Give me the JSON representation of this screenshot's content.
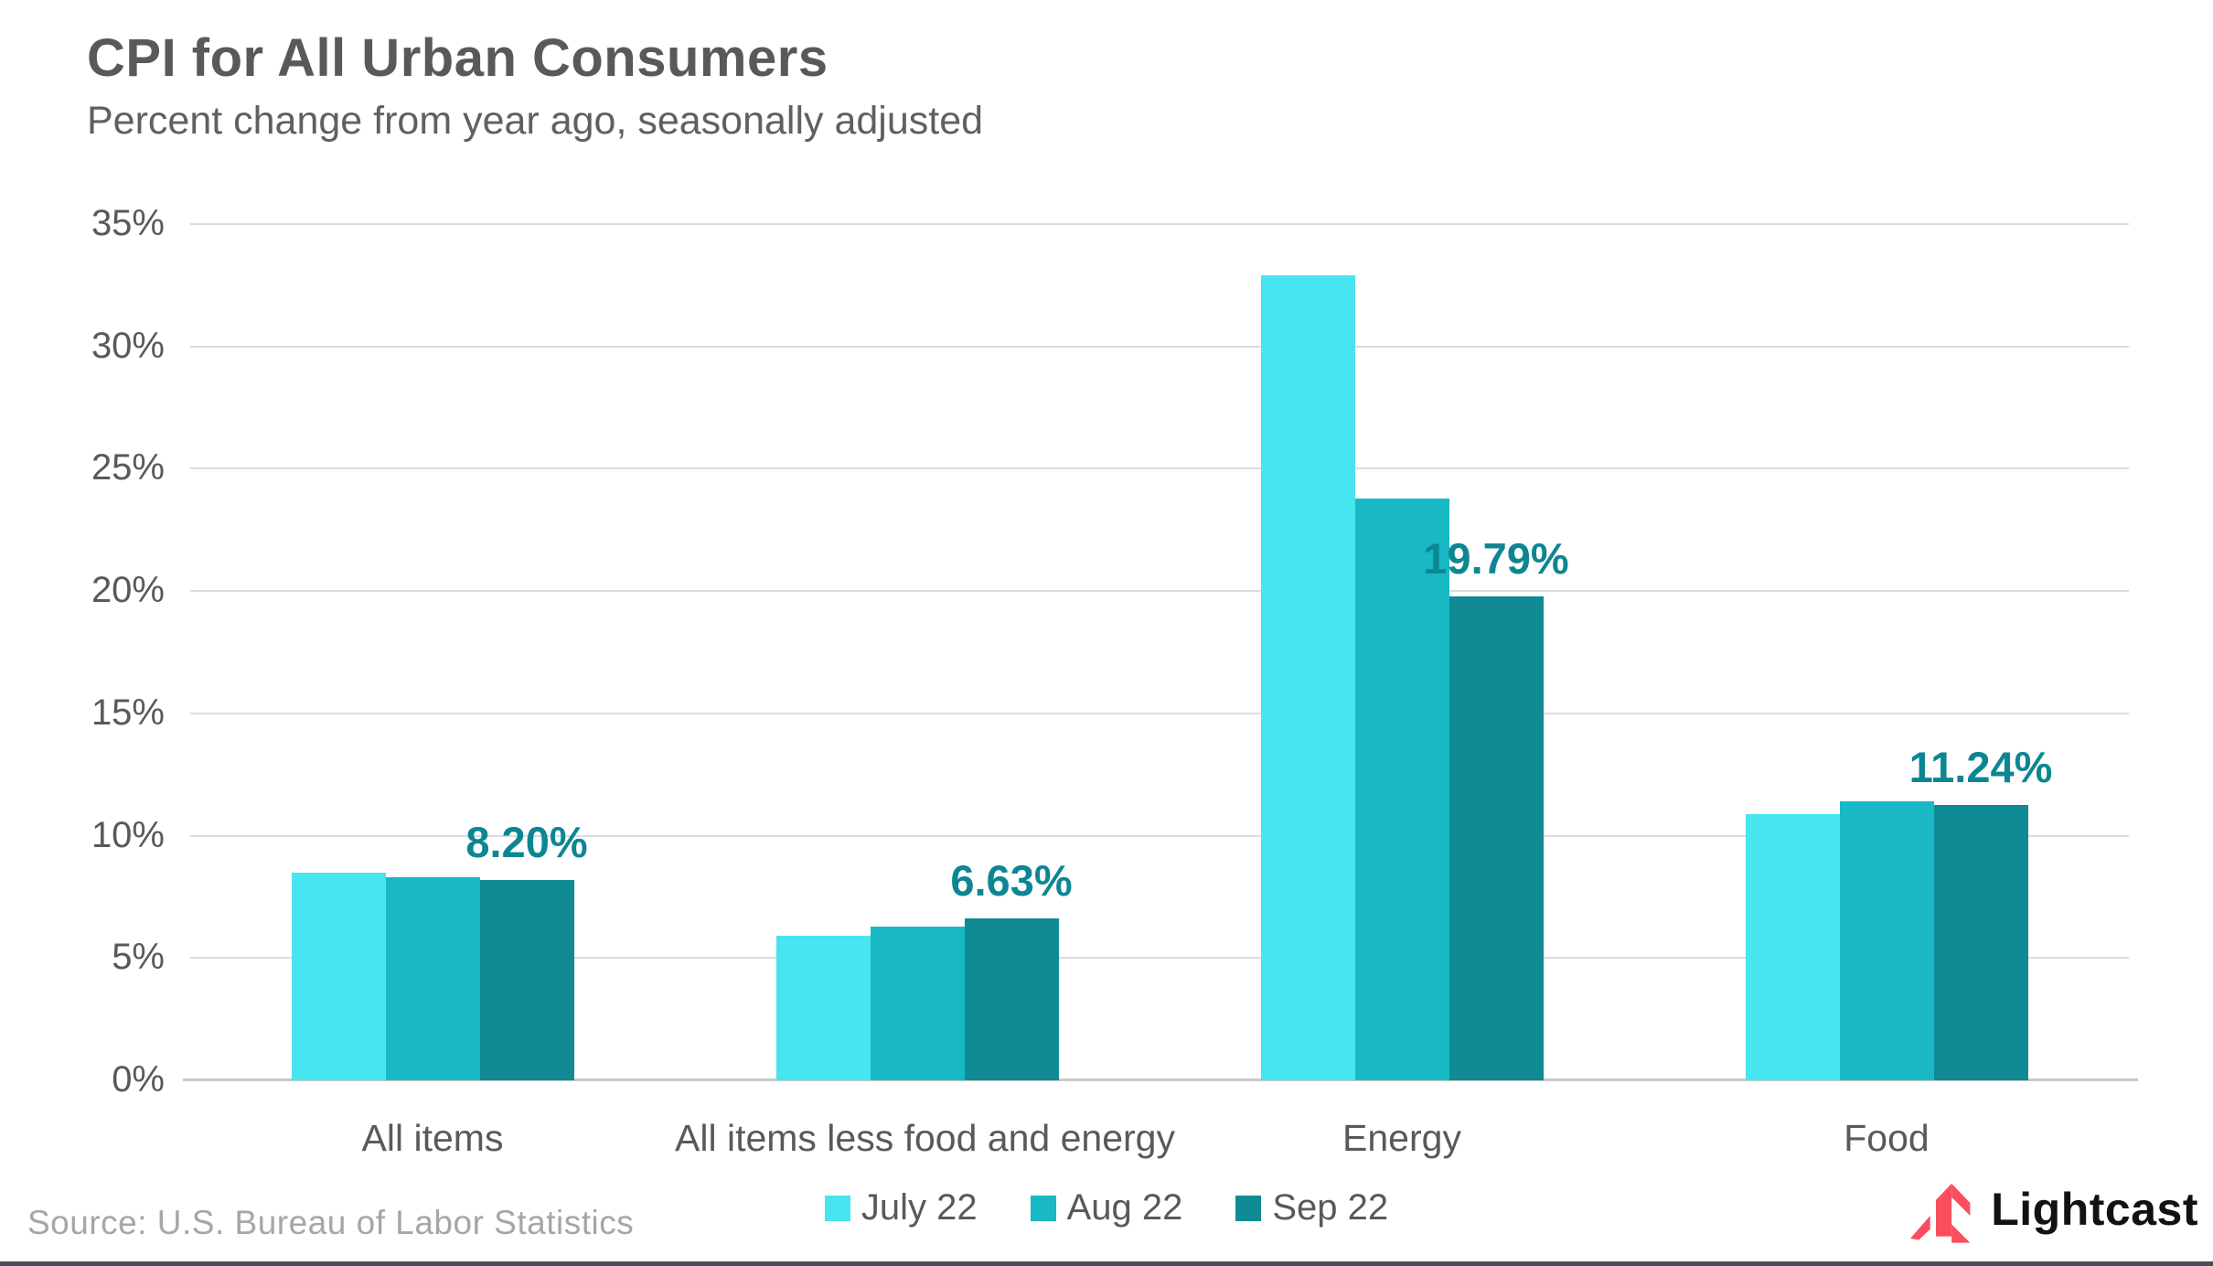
{
  "header": {
    "title": "CPI for All Urban Consumers",
    "subtitle": "Percent change from year ago, seasonally adjusted"
  },
  "chart_data": {
    "type": "bar",
    "categories": [
      "All items",
      "All items less food and energy",
      "Energy",
      "Food"
    ],
    "series": [
      {
        "name": "July 22",
        "color": "#46E5EF",
        "values": [
          8.5,
          5.9,
          32.9,
          10.9
        ]
      },
      {
        "name": "Aug 22",
        "color": "#18B9C5",
        "values": [
          8.3,
          6.3,
          23.8,
          11.4
        ]
      },
      {
        "name": "Sep 22",
        "color": "#108A94",
        "values": [
          8.2,
          6.63,
          19.79,
          11.24
        ]
      }
    ],
    "data_labels": [
      "8.20%",
      "6.63%",
      "19.79%",
      "11.24%"
    ],
    "data_label_series_index": 2,
    "data_label_color": "#0D8693",
    "title": "CPI for All Urban Consumers",
    "subtitle": "Percent change from year ago, seasonally adjusted",
    "xlabel": "",
    "ylabel": "",
    "ylim": [
      0,
      35
    ],
    "ytick_step": 5,
    "ytick_suffix": "%",
    "grid": true,
    "legend_position": "bottom"
  },
  "footer": {
    "source": "Source:  U.S. Bureau of Labor Statistics",
    "brand": "Lightcast"
  },
  "colors": {
    "title_text": "#595959",
    "axis_text": "#595959",
    "gridline": "#dcdcdc",
    "source_text": "#a6a6a6",
    "brand_mark": "#FB4E5D",
    "brand_text": "#121212",
    "bottom_rule": "#475059"
  }
}
